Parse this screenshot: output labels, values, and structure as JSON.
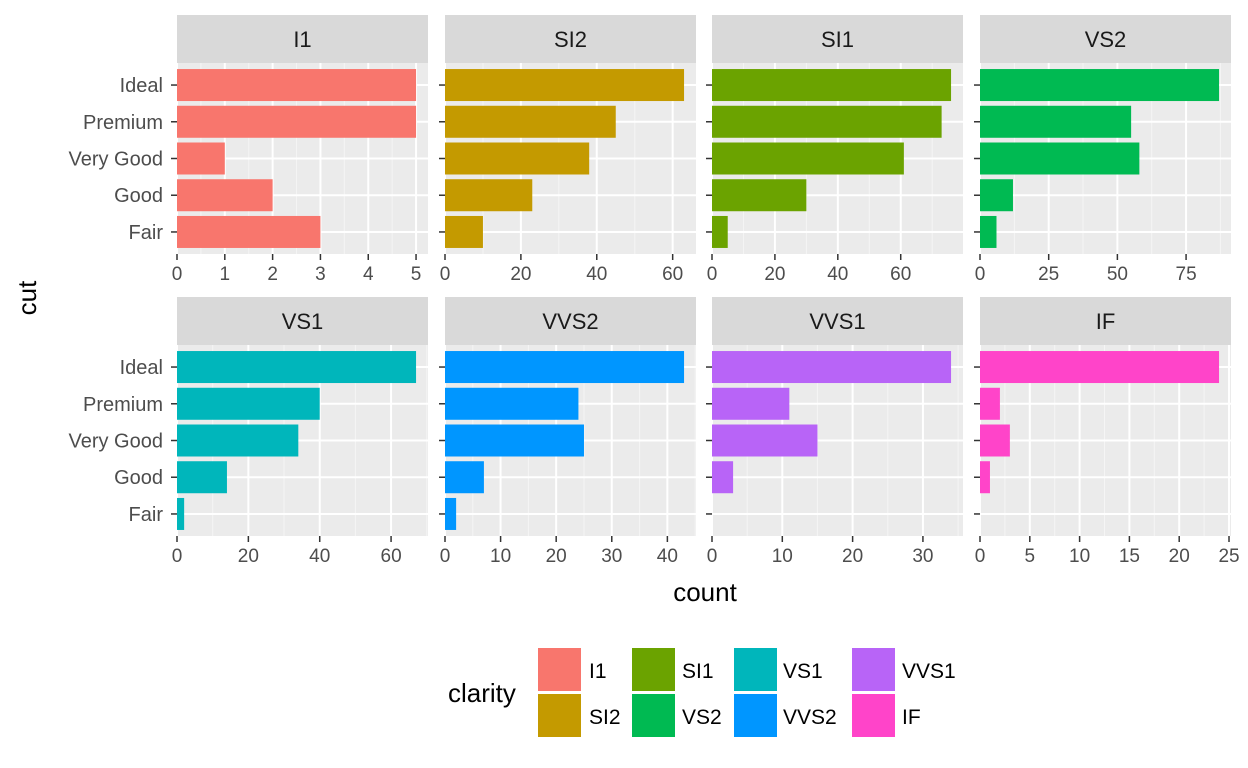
{
  "chart_data": {
    "type": "bar",
    "orientation": "horizontal",
    "facet_by": "clarity",
    "xlabel": "count",
    "ylabel": "cut",
    "categories": [
      "Ideal",
      "Premium",
      "Very Good",
      "Good",
      "Fair"
    ],
    "grid": true,
    "legend": {
      "title": "clarity",
      "position": "bottom",
      "items": [
        {
          "label": "I1",
          "color": "#F8766D"
        },
        {
          "label": "SI2",
          "color": "#C49A00"
        },
        {
          "label": "SI1",
          "color": "#6BA300"
        },
        {
          "label": "VS2",
          "color": "#00BA52"
        },
        {
          "label": "VS1",
          "color": "#00B6BB"
        },
        {
          "label": "VVS2",
          "color": "#0096FF"
        },
        {
          "label": "VVS1",
          "color": "#B864F7"
        },
        {
          "label": "IF",
          "color": "#FF44C9"
        }
      ]
    },
    "panels": [
      {
        "name": "I1",
        "color": "#F8766D",
        "values": [
          5,
          5,
          1,
          2,
          3
        ],
        "xlim": [
          0,
          5.25
        ],
        "ticks": [
          0,
          1,
          2,
          3,
          4,
          5
        ]
      },
      {
        "name": "SI2",
        "color": "#C49A00",
        "values": [
          63,
          45,
          38,
          23,
          10
        ],
        "xlim": [
          0,
          66.15
        ],
        "ticks": [
          0,
          20,
          40,
          60
        ]
      },
      {
        "name": "SI1",
        "color": "#6BA300",
        "values": [
          76,
          73,
          61,
          30,
          5
        ],
        "xlim": [
          0,
          79.8
        ],
        "ticks": [
          0,
          20,
          40,
          60
        ]
      },
      {
        "name": "VS2",
        "color": "#00BA52",
        "values": [
          87,
          55,
          58,
          12,
          6
        ],
        "xlim": [
          0,
          91.35
        ],
        "ticks": [
          0,
          25,
          50,
          75
        ]
      },
      {
        "name": "VS1",
        "color": "#00B6BB",
        "values": [
          67,
          40,
          34,
          14,
          2
        ],
        "xlim": [
          0,
          70.35
        ],
        "ticks": [
          0,
          20,
          40,
          60
        ]
      },
      {
        "name": "VVS2",
        "color": "#0096FF",
        "values": [
          43,
          24,
          25,
          7,
          2
        ],
        "xlim": [
          0,
          45.15
        ],
        "ticks": [
          0,
          10,
          20,
          30,
          40
        ]
      },
      {
        "name": "VVS1",
        "color": "#B864F7",
        "values": [
          34,
          11,
          15,
          3,
          0
        ],
        "xlim": [
          0,
          35.7
        ],
        "ticks": [
          0,
          10,
          20,
          30
        ]
      },
      {
        "name": "IF",
        "color": "#FF44C9",
        "values": [
          24,
          2,
          3,
          1,
          0
        ],
        "xlim": [
          0,
          25.2
        ],
        "ticks": [
          0,
          5,
          10,
          15,
          20,
          25
        ]
      }
    ]
  }
}
